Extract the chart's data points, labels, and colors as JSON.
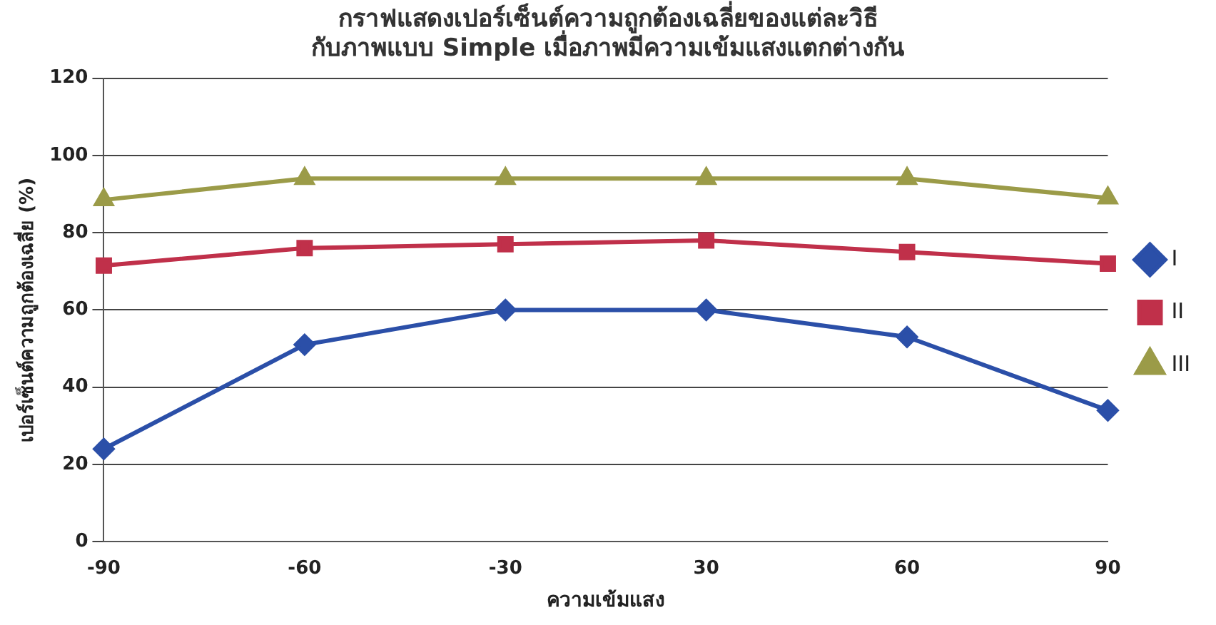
{
  "chart_data": {
    "type": "line",
    "title": [
      "กราฟแสดงเปอร์เซ็นต์ความถูกต้องเฉลี่ยของแต่ละวิธี",
      "กับภาพแบบ Simple เมื่อภาพมีความเข้มแสงแตกต่างกัน"
    ],
    "xlabel": "ความเข้มแสง",
    "ylabel": "เปอร์เซ็นต์ความถูกต้องเฉลี่ย (%)",
    "categories": [
      "-90",
      "-60",
      "-30",
      "30",
      "60",
      "90"
    ],
    "series": [
      {
        "name": "I",
        "color": "#2b4fa8",
        "marker": "diamond",
        "values": [
          24,
          51,
          60,
          60,
          53,
          34
        ]
      },
      {
        "name": "II",
        "color": "#c0304a",
        "marker": "square",
        "values": [
          71.5,
          76,
          77,
          78,
          75,
          72
        ]
      },
      {
        "name": "III",
        "color": "#9b9b48",
        "marker": "triangle",
        "values": [
          88.5,
          94,
          94,
          94,
          94,
          89
        ]
      }
    ],
    "ylim": [
      0,
      120
    ],
    "yticks": [
      0,
      20,
      40,
      60,
      80,
      100,
      120
    ],
    "grid": "y",
    "legend": "right",
    "line_style": "solid"
  }
}
